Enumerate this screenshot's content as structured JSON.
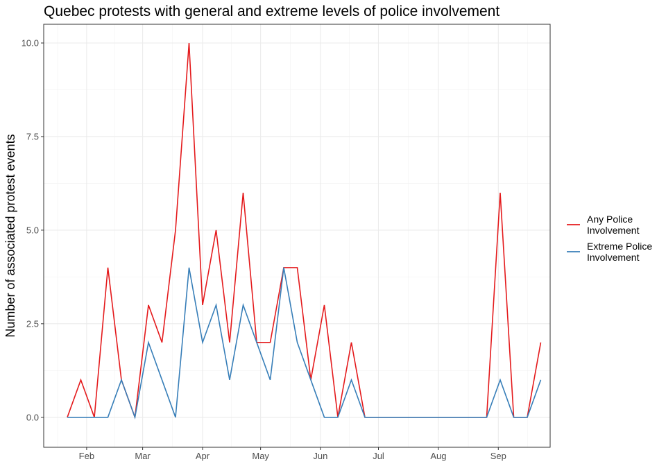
{
  "chart_data": {
    "type": "line",
    "title": "Quebec protests with general and extreme levels of police involvement",
    "xlabel": "",
    "ylabel": "Number of associated protest events",
    "x_tick_labels": [
      "Feb",
      "Mar",
      "Apr",
      "May",
      "Jun",
      "Jul",
      "Aug",
      "Sep"
    ],
    "y_tick_labels": [
      "0.0",
      "2.5",
      "5.0",
      "7.5",
      "10.0"
    ],
    "y_ticks": [
      0,
      2.5,
      5,
      7.5,
      10
    ],
    "ylim": [
      -0.8,
      10.5
    ],
    "grid": true,
    "legend_position": "right",
    "x": [
      "Jan 22",
      "Jan 29",
      "Feb 5",
      "Feb 12",
      "Feb 19",
      "Feb 26",
      "Mar 5",
      "Mar 12",
      "Mar 19",
      "Mar 26",
      "Apr 2",
      "Apr 9",
      "Apr 16",
      "Apr 23",
      "Apr 30",
      "May 7",
      "May 14",
      "May 21",
      "May 28",
      "Jun 4",
      "Jun 11",
      "Jun 18",
      "Jun 25",
      "Jul 2",
      "Jul 9",
      "Jul 16",
      "Jul 23",
      "Jul 30",
      "Aug 6",
      "Aug 13",
      "Aug 20",
      "Aug 27",
      "Sep 3",
      "Sep 10",
      "Sep 17",
      "Sep 24"
    ],
    "series": [
      {
        "name": "Any Police Involvement",
        "color": "#e41a1c",
        "values": [
          0,
          1,
          0,
          4,
          1,
          0,
          3,
          2,
          5,
          10,
          3,
          5,
          2,
          6,
          2,
          2,
          4,
          4,
          1,
          3,
          0,
          2,
          0,
          0,
          0,
          0,
          0,
          0,
          0,
          0,
          0,
          0,
          6,
          0,
          0,
          2
        ]
      },
      {
        "name": "Extreme Police Involvement",
        "color": "#377eb8",
        "values": [
          0,
          0,
          0,
          0,
          1,
          0,
          2,
          1,
          0,
          4,
          2,
          3,
          1,
          3,
          2,
          1,
          4,
          2,
          1,
          0,
          0,
          1,
          0,
          0,
          0,
          0,
          0,
          0,
          0,
          0,
          0,
          0,
          1,
          0,
          0,
          1
        ]
      }
    ]
  },
  "legend": {
    "items": [
      {
        "line1": "Any Police",
        "line2": "Involvement",
        "color": "#e41a1c"
      },
      {
        "line1": "Extreme Police",
        "line2": "Involvement",
        "color": "#377eb8"
      }
    ]
  }
}
